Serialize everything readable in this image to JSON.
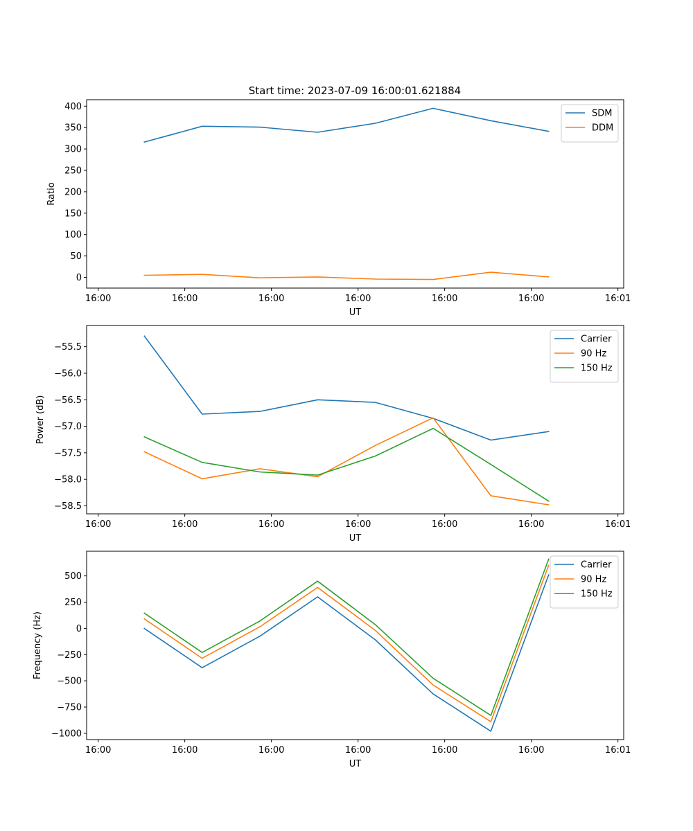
{
  "figure_title": "Start time: 2023-07-09 16:00:01.621884",
  "chart_data": [
    {
      "type": "line",
      "title": "Start time: 2023-07-09 16:00:01.621884",
      "xlabel": "UT",
      "ylabel": "Ratio",
      "x": [
        1,
        2,
        3,
        4,
        5,
        6,
        7,
        8
      ],
      "xlim": [
        0,
        9.3
      ],
      "xticks": [
        0.2,
        1.7,
        3.2,
        4.7,
        6.2,
        7.7,
        9.2
      ],
      "xtick_labels": [
        "16:00",
        "16:00",
        "16:00",
        "16:00",
        "16:00",
        "16:00",
        "16:01"
      ],
      "ylim": [
        -25,
        415
      ],
      "yticks": [
        0,
        50,
        100,
        150,
        200,
        250,
        300,
        350,
        400
      ],
      "ytick_labels": [
        "0",
        "50",
        "100",
        "150",
        "200",
        "250",
        "300",
        "350",
        "400"
      ],
      "legend_position": "top-right",
      "series": [
        {
          "name": "SDM",
          "color": "#1f77b4",
          "values": [
            316,
            353,
            351,
            339,
            360,
            395,
            366,
            341
          ]
        },
        {
          "name": "DDM",
          "color": "#ff7f0e",
          "values": [
            5,
            7,
            -1,
            1,
            -4,
            -5,
            12,
            1
          ]
        }
      ]
    },
    {
      "type": "line",
      "xlabel": "UT",
      "ylabel": "Power (dB)",
      "x": [
        1,
        2,
        3,
        4,
        5,
        6,
        7,
        8
      ],
      "xlim": [
        0,
        9.3
      ],
      "xticks": [
        0.2,
        1.7,
        3.2,
        4.7,
        6.2,
        7.7,
        9.2
      ],
      "xtick_labels": [
        "16:00",
        "16:00",
        "16:00",
        "16:00",
        "16:00",
        "16:00",
        "16:01"
      ],
      "ylim": [
        -58.65,
        -55.1
      ],
      "yticks": [
        -58.5,
        -58.0,
        -57.5,
        -57.0,
        -56.5,
        -56.0,
        -55.5
      ],
      "ytick_labels": [
        "−58.5",
        "−58.0",
        "−57.5",
        "−57.0",
        "−56.5",
        "−56.0",
        "−55.5"
      ],
      "legend_position": "top-right",
      "series": [
        {
          "name": "Carrier",
          "color": "#1f77b4",
          "values": [
            -55.3,
            -56.77,
            -56.72,
            -56.5,
            -56.55,
            -56.85,
            -57.26,
            -57.1
          ]
        },
        {
          "name": "90 Hz",
          "color": "#ff7f0e",
          "values": [
            -57.48,
            -57.99,
            -57.8,
            -57.95,
            -57.36,
            -56.84,
            -58.31,
            -58.48
          ]
        },
        {
          "name": "150 Hz",
          "color": "#2ca02c",
          "values": [
            -57.2,
            -57.68,
            -57.86,
            -57.92,
            -57.56,
            -57.04,
            -57.72,
            -58.41
          ]
        }
      ]
    },
    {
      "type": "line",
      "xlabel": "UT",
      "ylabel": "Frequency (Hz)",
      "x": [
        1,
        2,
        3,
        4,
        5,
        6,
        7,
        8
      ],
      "xlim": [
        0,
        9.3
      ],
      "xticks": [
        0.2,
        1.7,
        3.2,
        4.7,
        6.2,
        7.7,
        9.2
      ],
      "xtick_labels": [
        "16:00",
        "16:00",
        "16:00",
        "16:00",
        "16:00",
        "16:00",
        "16:01"
      ],
      "ylim": [
        -1060,
        735
      ],
      "yticks": [
        -1000,
        -750,
        -500,
        -250,
        0,
        250,
        500
      ],
      "ytick_labels": [
        "−1000",
        "−750",
        "−500",
        "−250",
        "0",
        "250",
        "500"
      ],
      "legend_position": "top-right",
      "series": [
        {
          "name": "Carrier",
          "color": "#1f77b4",
          "values": [
            -1,
            -375,
            -75,
            300,
            -110,
            -625,
            -980,
            510
          ]
        },
        {
          "name": "90 Hz",
          "color": "#ff7f0e",
          "values": [
            90,
            -285,
            15,
            390,
            -20,
            -540,
            -890,
            600
          ]
        },
        {
          "name": "150 Hz",
          "color": "#2ca02c",
          "values": [
            145,
            -230,
            70,
            450,
            35,
            -475,
            -830,
            660
          ]
        }
      ]
    }
  ]
}
